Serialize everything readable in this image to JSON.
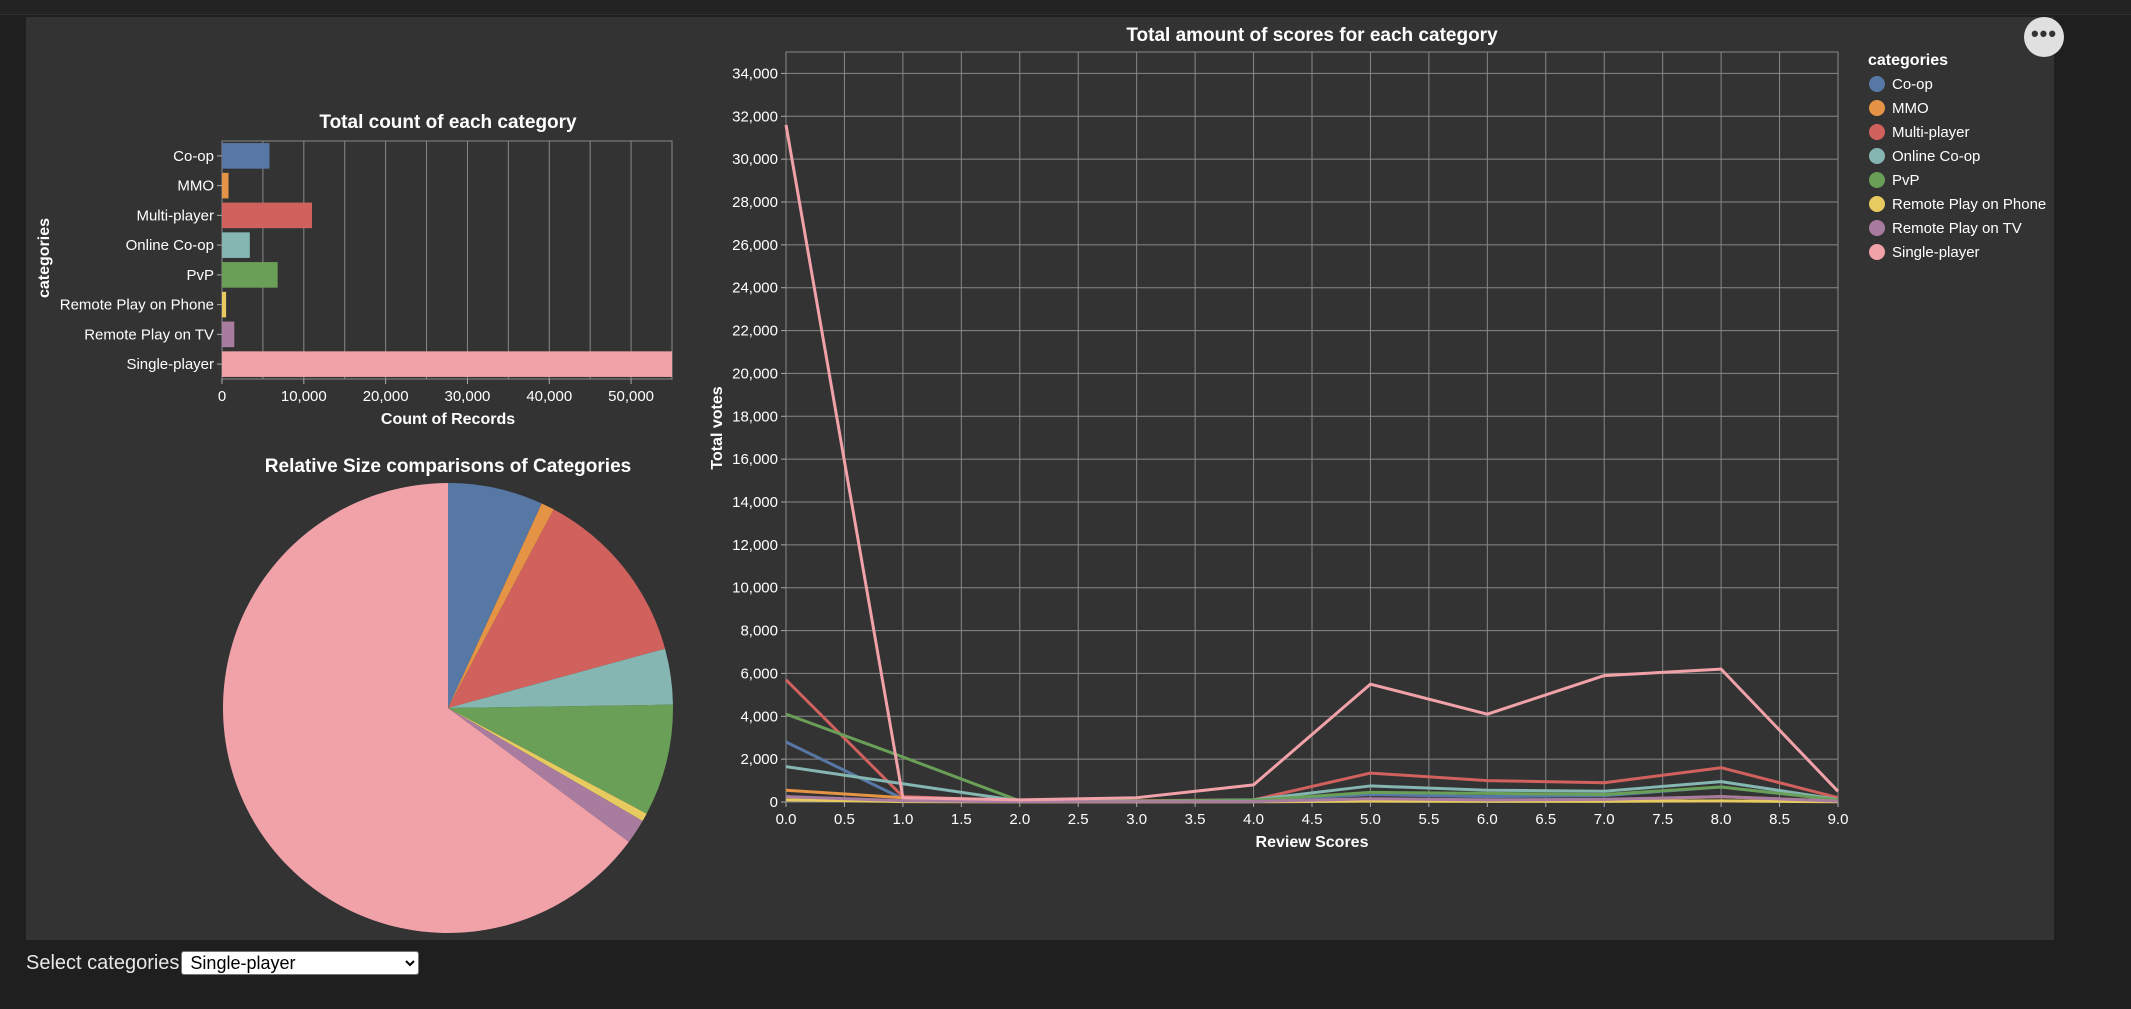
{
  "colors": {
    "Co-op": "#5778a4",
    "MMO": "#e49444",
    "Multi-player": "#d1615d",
    "Online Co-op": "#85b6b2",
    "PvP": "#6a9f58",
    "Remote Play on Phone": "#e7ca60",
    "Remote Play on TV": "#a87c9f",
    "Single-player": "#f1a2a9"
  },
  "menu": {
    "label": "•••"
  },
  "controls": {
    "select_label": "Select categories",
    "selected": "Single-player"
  },
  "chart_data": [
    {
      "type": "bar",
      "orientation": "horizontal",
      "title": "Total count of each category",
      "xlabel": "Count of Records",
      "ylabel": "categories",
      "xlim": [
        0,
        55000
      ],
      "xticks": [
        0,
        10000,
        20000,
        30000,
        40000,
        50000
      ],
      "xtick_labels": [
        "0",
        "10,000",
        "20,000",
        "30,000",
        "40,000",
        "50,000"
      ],
      "grid": true,
      "categories": [
        "Co-op",
        "MMO",
        "Multi-player",
        "Online Co-op",
        "PvP",
        "Remote Play on Phone",
        "Remote Play on TV",
        "Single-player"
      ],
      "values": [
        5800,
        800,
        11000,
        3400,
        6800,
        500,
        1500,
        55000
      ]
    },
    {
      "type": "pie",
      "title": "Relative Size comparisons of Categories",
      "categories": [
        "Co-op",
        "MMO",
        "Multi-player",
        "Online Co-op",
        "PvP",
        "Remote Play on Phone",
        "Remote Play on TV",
        "Single-player"
      ],
      "values": [
        5800,
        800,
        11000,
        3400,
        6800,
        500,
        1500,
        55000
      ]
    },
    {
      "type": "line",
      "title": "Total amount of scores for each category",
      "xlabel": "Review Scores",
      "ylabel": "Total votes",
      "xlim": [
        0,
        9
      ],
      "ylim": [
        0,
        35000
      ],
      "xticks": [
        0,
        0.5,
        1,
        1.5,
        2,
        2.5,
        3,
        3.5,
        4,
        4.5,
        5,
        5.5,
        6,
        6.5,
        7,
        7.5,
        8,
        8.5,
        9
      ],
      "xtick_labels": [
        "0.0",
        "0.5",
        "1.0",
        "1.5",
        "2.0",
        "2.5",
        "3.0",
        "3.5",
        "4.0",
        "4.5",
        "5.0",
        "5.5",
        "6.0",
        "6.5",
        "7.0",
        "7.5",
        "8.0",
        "8.5",
        "9.0"
      ],
      "yticks": [
        0,
        2000,
        4000,
        6000,
        8000,
        10000,
        12000,
        14000,
        16000,
        18000,
        20000,
        22000,
        24000,
        26000,
        28000,
        30000,
        32000,
        34000
      ],
      "ytick_labels": [
        "0",
        "2,000",
        "4,000",
        "6,000",
        "8,000",
        "10,000",
        "12,000",
        "14,000",
        "16,000",
        "18,000",
        "20,000",
        "22,000",
        "24,000",
        "26,000",
        "28,000",
        "30,000",
        "32,000",
        "34,000"
      ],
      "grid": true,
      "legend_title": "categories",
      "legend_position": "right",
      "x": [
        0,
        1,
        2,
        3,
        4,
        5,
        6,
        7,
        8,
        9
      ],
      "series": [
        {
          "name": "Co-op",
          "values": [
            2800,
            150,
            30,
            30,
            60,
            350,
            250,
            300,
            700,
            100
          ]
        },
        {
          "name": "MMO",
          "values": [
            550,
            200,
            20,
            10,
            20,
            100,
            80,
            100,
            250,
            40
          ]
        },
        {
          "name": "Multi-player",
          "values": [
            5700,
            250,
            60,
            60,
            100,
            1350,
            1000,
            900,
            1600,
            200
          ]
        },
        {
          "name": "Online Co-op",
          "values": [
            1650,
            850,
            50,
            40,
            100,
            750,
            550,
            500,
            950,
            120
          ]
        },
        {
          "name": "PvP",
          "values": [
            4100,
            2100,
            50,
            40,
            80,
            450,
            400,
            350,
            700,
            100
          ]
        },
        {
          "name": "Remote Play on Phone",
          "values": [
            100,
            20,
            5,
            5,
            10,
            40,
            30,
            30,
            50,
            10
          ]
        },
        {
          "name": "Remote Play on TV",
          "values": [
            250,
            60,
            10,
            10,
            20,
            150,
            100,
            120,
            250,
            40
          ]
        },
        {
          "name": "Single-player",
          "values": [
            31600,
            200,
            100,
            200,
            800,
            5500,
            4100,
            5900,
            6200,
            500
          ]
        }
      ]
    }
  ]
}
